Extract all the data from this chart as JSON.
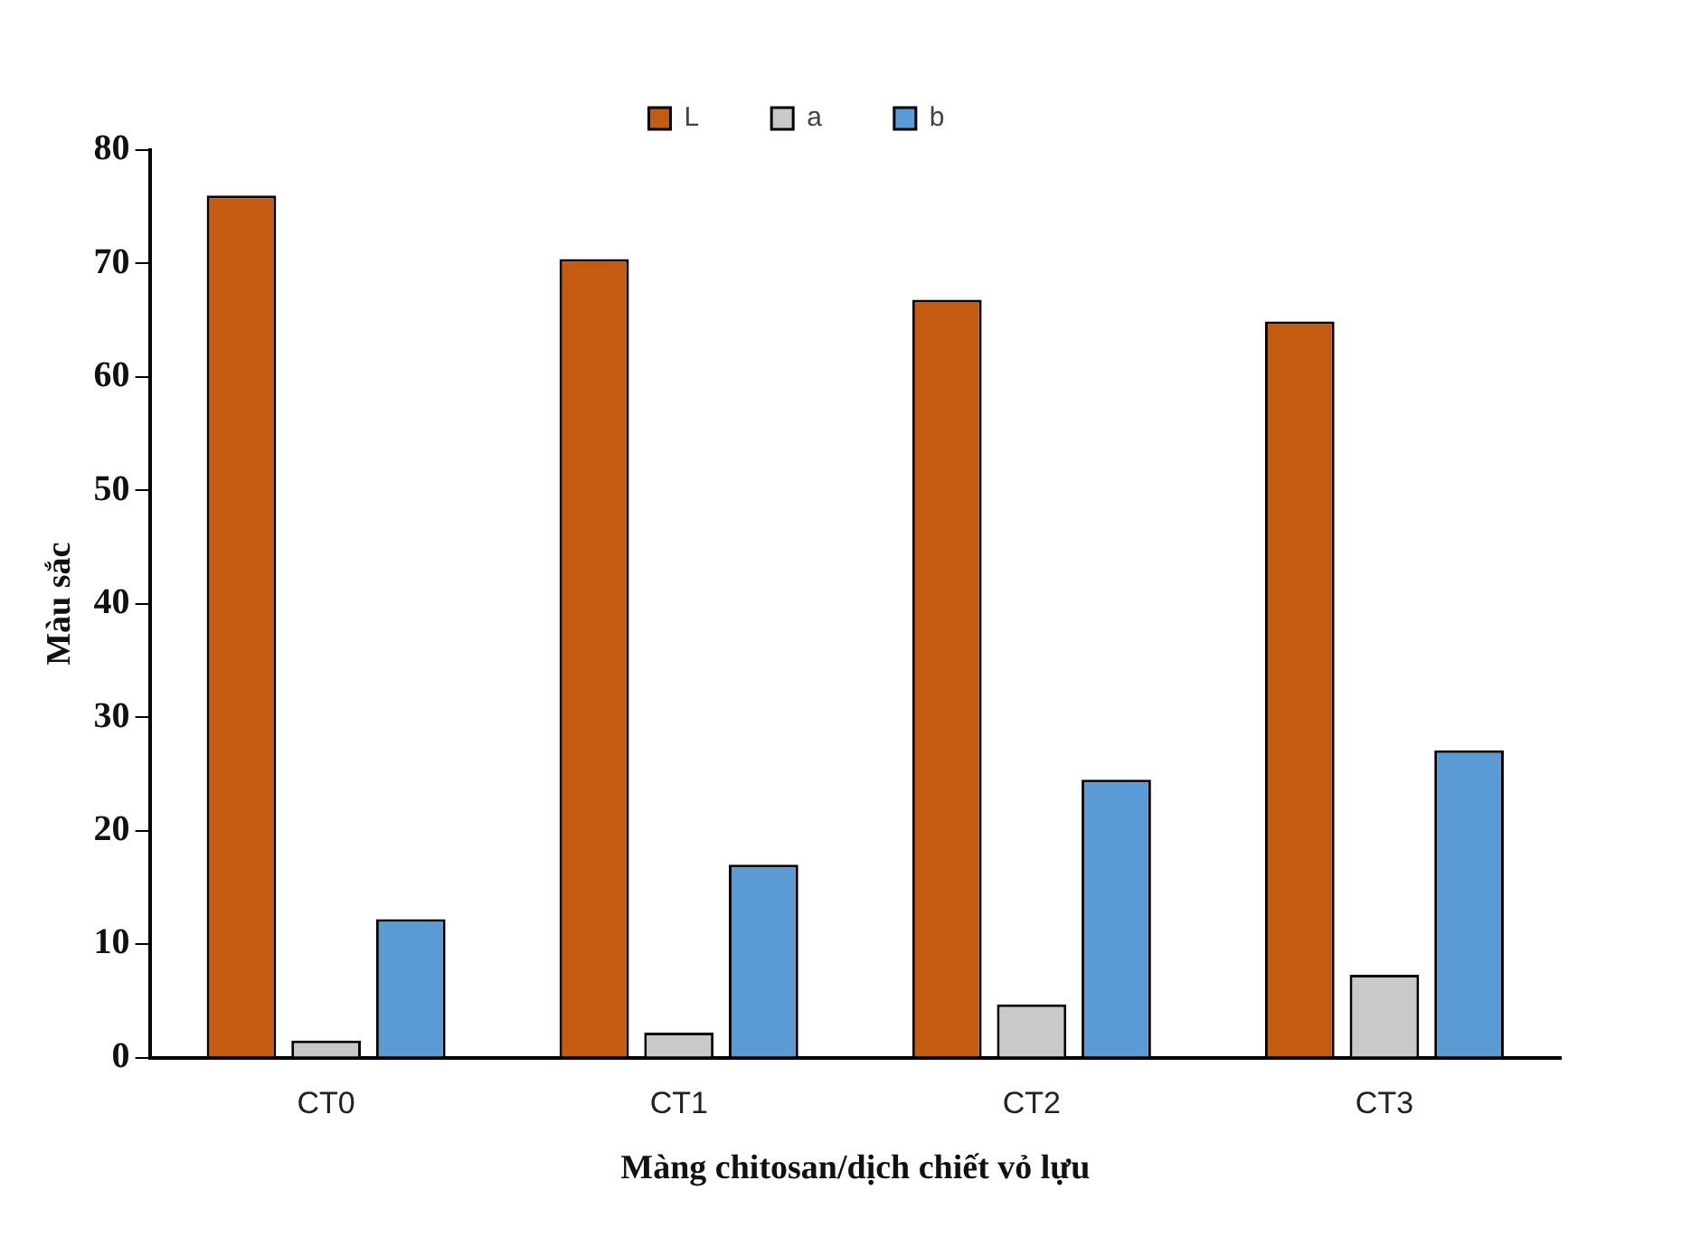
{
  "chart_data": {
    "type": "bar",
    "xlabel": "Màng chitosan/dịch chiết vỏ lựu",
    "ylabel": "Màu sắc",
    "categories": [
      "CT0",
      "CT1",
      "CT2",
      "CT3"
    ],
    "series": [
      {
        "name": "L",
        "color": "#c55a11",
        "values": [
          76,
          70.4,
          66.8,
          64.9
        ]
      },
      {
        "name": "a",
        "color": "#c9c9c9",
        "values": [
          1.5,
          2.2,
          4.7,
          7.3
        ]
      },
      {
        "name": "b",
        "color": "#5b9bd5",
        "values": [
          12.2,
          17,
          24.5,
          27.1
        ]
      }
    ],
    "ylim": [
      0,
      80
    ],
    "yticks": [
      0,
      10,
      20,
      30,
      40,
      50,
      60,
      70,
      80
    ],
    "grid": false,
    "legend": "top"
  }
}
